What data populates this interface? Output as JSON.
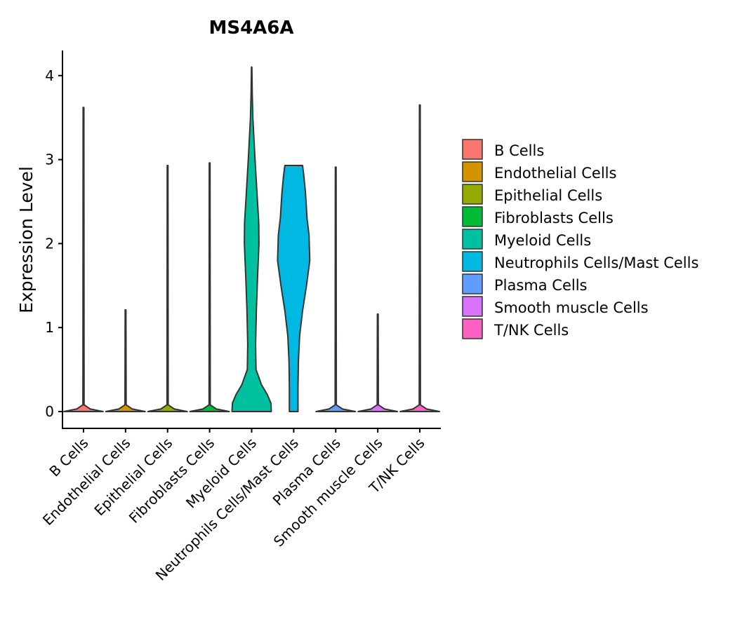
{
  "chart_data": {
    "type": "violin",
    "title": "MS4A6A",
    "xlabel": "",
    "ylabel": "Expression Level",
    "ylim": [
      -0.2,
      4.3
    ],
    "yticks": [
      0,
      1,
      2,
      3,
      4
    ],
    "categories": [
      "B Cells",
      "Endothelial Cells",
      "Epithelial Cells",
      "Fibroblasts Cells",
      "Myeloid Cells",
      "Neutrophils Cells/Mast Cells",
      "Plasma Cells",
      "Smooth muscle Cells",
      "T/NK Cells"
    ],
    "colors": [
      "#F8766D",
      "#D39200",
      "#93AA00",
      "#00BA38",
      "#00C19F",
      "#00B9E3",
      "#619CFF",
      "#DB72FB",
      "#FF61C3"
    ],
    "max_values": [
      3.62,
      1.21,
      2.93,
      2.96,
      4.1,
      2.93,
      2.91,
      1.16,
      3.65
    ],
    "legend": {
      "position": "right",
      "entries": [
        "B Cells",
        "Endothelial Cells",
        "Epithelial Cells",
        "Fibroblasts Cells",
        "Myeloid Cells",
        "Neutrophils Cells/Mast Cells",
        "Plasma Cells",
        "Smooth muscle Cells",
        "T/NK Cells"
      ]
    }
  }
}
